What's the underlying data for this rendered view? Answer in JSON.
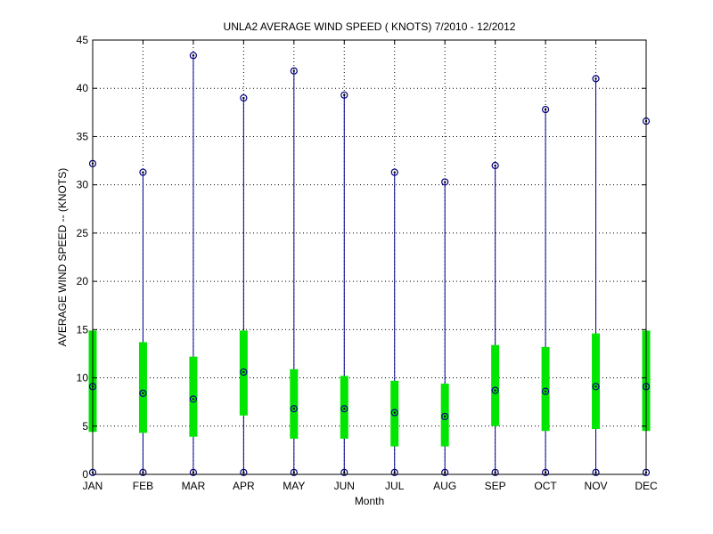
{
  "chart_data": {
    "type": "box",
    "title": "UNLA2  AVERAGE WIND SPEED ( KNOTS) 7/2010 - 12/2012",
    "xlabel": "Month",
    "ylabel": "AVERAGE WIND SPEED -- (KNOTS)",
    "ylim": [
      0,
      45
    ],
    "yticks": [
      0,
      5,
      10,
      15,
      20,
      25,
      30,
      35,
      40,
      45
    ],
    "grid": true,
    "categories": [
      "JAN",
      "FEB",
      "MAR",
      "APR",
      "MAY",
      "JUN",
      "JUL",
      "AUG",
      "SEP",
      "OCT",
      "NOV",
      "DEC"
    ],
    "min": [
      0.2,
      0.2,
      0.2,
      0.2,
      0.2,
      0.2,
      0.2,
      0.2,
      0.2,
      0.2,
      0.2,
      0.2
    ],
    "max": [
      32.2,
      31.3,
      43.4,
      39.0,
      41.8,
      39.3,
      31.3,
      30.3,
      32.0,
      37.8,
      41.0,
      36.6
    ],
    "q1": [
      4.4,
      4.3,
      3.9,
      6.1,
      3.7,
      3.7,
      2.9,
      2.9,
      5.0,
      4.5,
      4.7,
      4.5
    ],
    "q3": [
      14.9,
      13.7,
      12.2,
      14.9,
      10.9,
      10.2,
      9.7,
      9.4,
      13.4,
      13.2,
      14.6,
      14.9
    ],
    "mean": [
      9.1,
      8.4,
      7.8,
      10.6,
      6.8,
      6.8,
      6.4,
      6.0,
      8.7,
      8.6,
      9.1,
      9.1
    ],
    "colors": {
      "whisker": "#00008f",
      "box": "#00e600",
      "marker": "#000080",
      "grid": "#000000"
    }
  }
}
